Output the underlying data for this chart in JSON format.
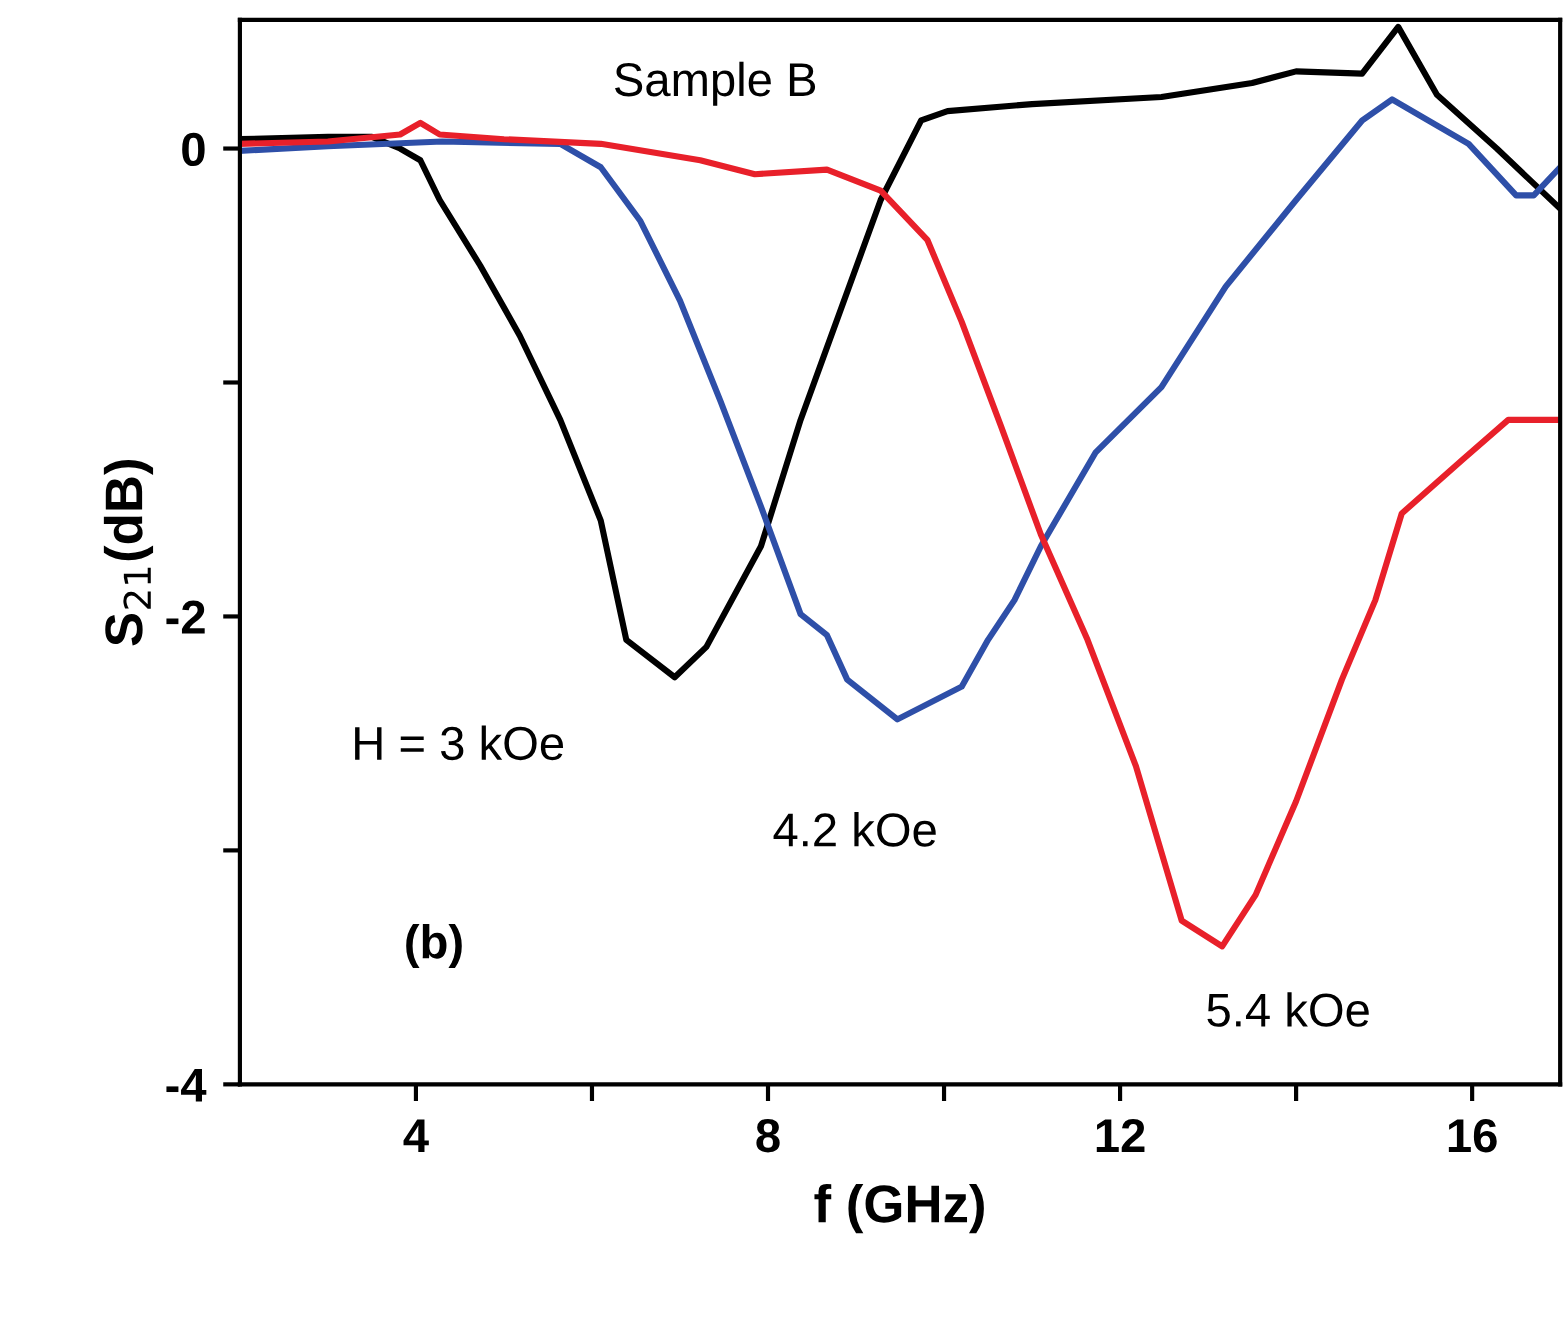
{
  "chart_data": {
    "type": "line",
    "xlabel": "f (GHz)",
    "ylabel": "S$_{21}$(dB)",
    "xlim": [
      2,
      17
    ],
    "ylim": [
      -4,
      0.55
    ],
    "xticks": [
      4,
      {
        "value": 6,
        "label": null
      },
      8,
      {
        "value": 10,
        "label": null
      },
      12,
      {
        "value": 14,
        "label": null
      },
      16
    ],
    "yticks": [
      -4,
      {
        "value": -3,
        "label": null
      },
      -2,
      {
        "value": -1,
        "label": null
      },
      0
    ],
    "grid": false,
    "legend": false,
    "marker": "none",
    "line_style": "solid",
    "annotations": [
      "Sample B",
      "(b)"
    ],
    "series": [
      {
        "name": "H = 3 kOe",
        "color": "#000000",
        "x": [
          2,
          3,
          3.5,
          3.82,
          4.05,
          4.27,
          4.73,
          5.18,
          5.64,
          6.1,
          6.39,
          6.94,
          7.3,
          7.92,
          8.37,
          8.67,
          9.28,
          9.74,
          10.04,
          11,
          12.47,
          13.5,
          14.0,
          14.75,
          15.16,
          15.6,
          16.28,
          16.98
        ],
        "values": [
          0.04,
          0.05,
          0.05,
          0.0,
          -0.05,
          -0.22,
          -0.5,
          -0.8,
          -1.16,
          -1.59,
          -2.1,
          -2.26,
          -2.13,
          -1.7,
          -1.16,
          -0.85,
          -0.22,
          0.12,
          0.16,
          0.19,
          0.22,
          0.28,
          0.33,
          0.32,
          0.52,
          0.23,
          0.0,
          -0.25
        ]
      },
      {
        "name": "4.2 kOe",
        "color": "#2e4fa8",
        "x": [
          2,
          3,
          4.3,
          5.64,
          6.1,
          6.55,
          7.0,
          7.46,
          7.92,
          8.37,
          8.67,
          8.9,
          9.47,
          10.2,
          10.5,
          10.8,
          11.1,
          11.72,
          12.47,
          13.2,
          14.0,
          14.75,
          15.09,
          15.5,
          15.96,
          16.5,
          16.7,
          17.0
        ],
        "values": [
          -0.01,
          0.01,
          0.03,
          0.02,
          -0.08,
          -0.31,
          -0.65,
          -1.08,
          -1.53,
          -1.99,
          -2.08,
          -2.27,
          -2.44,
          -2.3,
          -2.1,
          -1.93,
          -1.7,
          -1.3,
          -1.02,
          -0.59,
          -0.22,
          0.12,
          0.21,
          0.12,
          0.02,
          -0.2,
          -0.2,
          -0.08
        ]
      },
      {
        "name": "5.4 kOe",
        "color": "#e8202a",
        "x": [
          2,
          3,
          3.82,
          4.05,
          4.27,
          5,
          6.1,
          7.23,
          7.85,
          8.67,
          9.28,
          9.81,
          10.2,
          10.65,
          11.1,
          11.63,
          12.18,
          12.7,
          13.16,
          13.54,
          14.0,
          14.52,
          14.9,
          15.2,
          15.89,
          16.41,
          17.0
        ],
        "values": [
          0.02,
          0.03,
          0.06,
          0.11,
          0.06,
          0.04,
          0.02,
          -0.05,
          -0.11,
          -0.09,
          -0.18,
          -0.39,
          -0.74,
          -1.19,
          -1.65,
          -2.1,
          -2.64,
          -3.3,
          -3.41,
          -3.19,
          -2.79,
          -2.27,
          -1.93,
          -1.56,
          -1.33,
          -1.16,
          -1.16
        ]
      }
    ]
  }
}
